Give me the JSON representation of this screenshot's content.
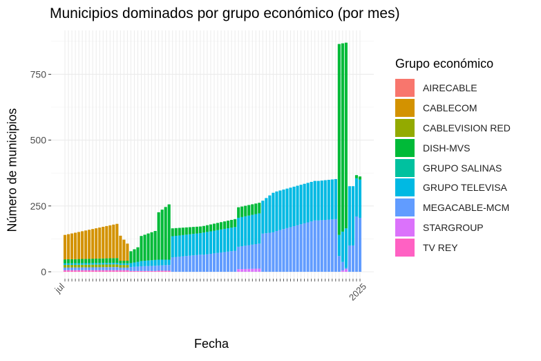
{
  "chart_data": {
    "type": "bar",
    "stacked": true,
    "title": "Municipios dominados por grupo económico (por mes)",
    "xlabel": "Fecha",
    "ylabel": "Número de municipios",
    "ylim": [
      0,
      900
    ],
    "yticks": [
      0,
      250,
      500,
      750
    ],
    "grid": true,
    "legend_position": "right",
    "legend_title": "Grupo económico",
    "x_range": [
      "jul 2019",
      "ene 2025"
    ],
    "x_ticks_note": "x tick labels are dense, rotated and overlapping (monthly dates); only the first 'jul' and last '2025' are legible",
    "x_tick_first": "jul",
    "x_tick_last": "2025",
    "series": [
      {
        "name": "AIRECABLE",
        "color": "#F8766D"
      },
      {
        "name": "CABLECOM",
        "color": "#D39200"
      },
      {
        "name": "CABLEVISION RED",
        "color": "#93AA00"
      },
      {
        "name": "DISH-MVS",
        "color": "#00BA38"
      },
      {
        "name": "GRUPO SALINAS",
        "color": "#00C19F"
      },
      {
        "name": "GRUPO TELEVISA",
        "color": "#00B9E3"
      },
      {
        "name": "MEGACABLE-MCM",
        "color": "#619CFF"
      },
      {
        "name": "STARGROUP",
        "color": "#DB72FB"
      },
      {
        "name": "TV REY",
        "color": "#FF61C3"
      }
    ],
    "segments": {
      "first_stack": [
        "TV REY",
        "STARGROUP",
        "MEGACABLE-MCM",
        "CABLEVISION RED",
        "GRUPO TELEVISA",
        "DISH-MVS",
        "CABLECOM"
      ],
      "later_stack": [
        "TV REY",
        "STARGROUP",
        "MEGACABLE-MCM",
        "GRUPO TELEVISA",
        "DISH-MVS"
      ]
    },
    "periods": [
      {
        "months": 16,
        "TV REY": [
          6,
          6
        ],
        "MEGACABLE-MCM": [
          10,
          12
        ],
        "CABLEVISION RED": [
          10,
          10
        ],
        "GRUPO TELEVISA": [
          6,
          6
        ],
        "DISH-MVS": [
          15,
          18
        ],
        "CABLECOM": [
          93,
          130
        ]
      },
      {
        "months": 3,
        "TV REY": [
          6,
          6
        ],
        "MEGACABLE-MCM": [
          10,
          10
        ],
        "CABLEVISION RED": [
          10,
          10
        ],
        "GRUPO TELEVISA": [
          6,
          6
        ],
        "DISH-MVS": [
          10,
          10
        ],
        "CABLECOM": [
          95,
          65
        ]
      },
      {
        "months": 3,
        "TV REY": [
          3,
          3
        ],
        "MEGACABLE-MCM": [
          15,
          17
        ],
        "GRUPO TELEVISA": [
          15,
          18
        ],
        "DISH-MVS": [
          45,
          55
        ]
      },
      {
        "months": 5,
        "TV REY": [
          3,
          3
        ],
        "MEGACABLE-MCM": [
          18,
          20
        ],
        "GRUPO TELEVISA": [
          20,
          22
        ],
        "DISH-MVS": [
          95,
          110
        ]
      },
      {
        "months": 4,
        "TV REY": [
          4,
          4
        ],
        "MEGACABLE-MCM": [
          20,
          22
        ],
        "GRUPO TELEVISA": [
          22,
          20
        ],
        "DISH-MVS": [
          180,
          210
        ]
      },
      {
        "months": 9,
        "TV REY": [
          0,
          0
        ],
        "MEGACABLE-MCM": [
          55,
          65
        ],
        "GRUPO TELEVISA": [
          80,
          82
        ],
        "DISH-MVS": [
          30,
          25
        ]
      },
      {
        "months": 10,
        "TV REY": [
          0,
          0
        ],
        "MEGACABLE-MCM": [
          65,
          80
        ],
        "GRUPO TELEVISA": [
          84,
          90
        ],
        "DISH-MVS": [
          25,
          30
        ]
      },
      {
        "months": 7,
        "STARGROUP": [
          10,
          12
        ],
        "MEGACABLE-MCM": [
          85,
          95
        ],
        "GRUPO TELEVISA": [
          110,
          115
        ],
        "DISH-MVS": [
          40,
          40
        ]
      },
      {
        "months": 4,
        "MEGACABLE-MCM": [
          145,
          150
        ],
        "GRUPO TELEVISA": [
          125,
          150
        ],
        "DISH-MVS": [
          0,
          0
        ]
      },
      {
        "months": 12,
        "MEGACABLE-MCM": [
          155,
          195
        ],
        "GRUPO TELEVISA": [
          150,
          150
        ],
        "DISH-MVS": [
          0,
          0
        ]
      },
      {
        "months": 6,
        "MEGACABLE-MCM": [
          195,
          200
        ],
        "GRUPO TELEVISA": [
          150,
          152
        ],
        "DISH-MVS": [
          0,
          0
        ]
      },
      {
        "months": 3,
        "MEGACABLE-MCM": [
          60,
          5
        ],
        "GRUPO TELEVISA": [
          80,
          150
        ],
        "DISH-MVS": [
          725,
          705
        ],
        "STARGROUP": [
          0,
          10
        ]
      },
      {
        "months": 2,
        "MEGACABLE-MCM": [
          100,
          100
        ],
        "GRUPO TELEVISA": [
          225,
          225
        ],
        "DISH-MVS": [
          0,
          0
        ]
      },
      {
        "months": 2,
        "MEGACABLE-MCM": [
          210,
          205
        ],
        "GRUPO TELEVISA": [
          145,
          145
        ],
        "DISH-MVS": [
          12,
          12
        ]
      }
    ]
  }
}
